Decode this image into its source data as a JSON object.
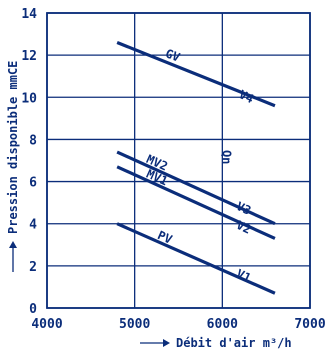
{
  "chart_data": {
    "type": "line",
    "xlabel": "Débit d'air m³/h",
    "ylabel": "Pression disponible mmCE",
    "xlim": [
      4000,
      7000
    ],
    "ylim": [
      0,
      14
    ],
    "xticks": [
      4000,
      5000,
      6000,
      7000
    ],
    "yticks": [
      0,
      2,
      4,
      6,
      8,
      10,
      12,
      14
    ],
    "grid": true,
    "color": "#0b2d7a",
    "series": [
      {
        "name": "GV",
        "x": [
          4800,
          6600
        ],
        "y": [
          12.6,
          9.6
        ]
      },
      {
        "name": "MV2",
        "x": [
          4800,
          6600
        ],
        "y": [
          7.4,
          4.0
        ]
      },
      {
        "name": "MV1",
        "x": [
          4800,
          6600
        ],
        "y": [
          6.7,
          3.3
        ]
      },
      {
        "name": "PV",
        "x": [
          4800,
          6600
        ],
        "y": [
          4.0,
          0.7
        ]
      }
    ],
    "annotations": [
      {
        "text": "V4",
        "x": 6180,
        "y": 10.0
      },
      {
        "text": "V3",
        "x": 6150,
        "y": 4.7
      },
      {
        "text": "V2",
        "x": 6150,
        "y": 3.8
      },
      {
        "text": "V1",
        "x": 6150,
        "y": 1.5
      },
      {
        "text": "Qn",
        "x": 6000,
        "y": 7.5
      }
    ]
  }
}
